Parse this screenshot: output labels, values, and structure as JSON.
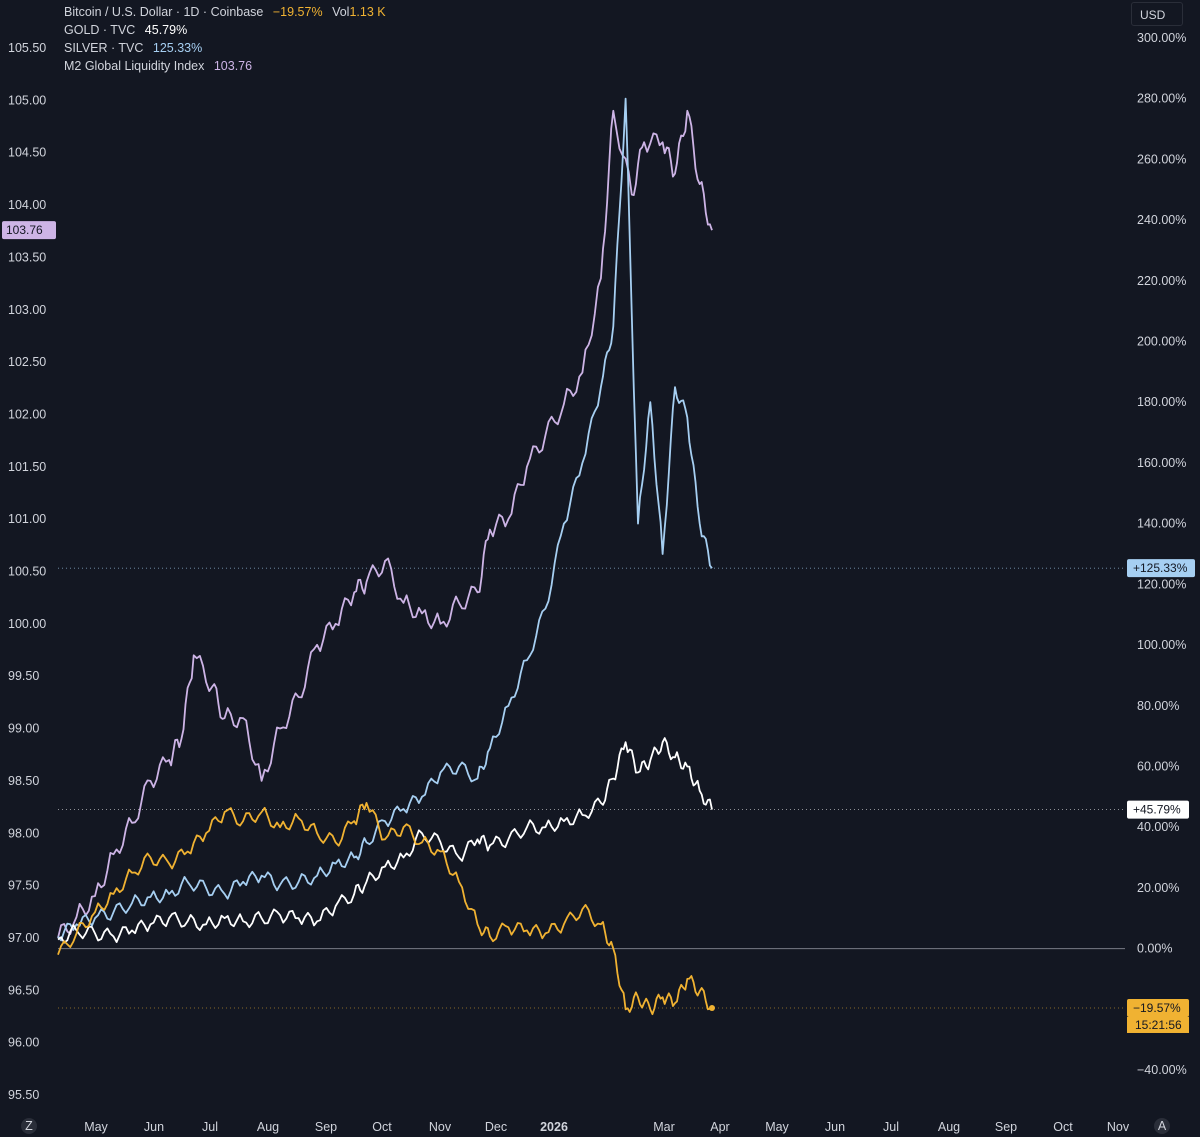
{
  "legend": [
    {
      "name": "Bitcoin / U.S. Dollar · 1D · Coinbase",
      "value": "−19.57%",
      "extra_label": "Vol",
      "extra_value": "1.13 K",
      "color": "#f0b232"
    },
    {
      "name": "GOLD · TVC",
      "value": "45.79%",
      "color": "#ffffff"
    },
    {
      "name": "SILVER · TVC",
      "value": "125.33%",
      "color": "#a6cff2"
    },
    {
      "name": "M2 Global Liquidity Index",
      "value": "103.76",
      "color": "#cdb4e6"
    }
  ],
  "currency_button": "USD",
  "bottom_left_icon": "Z",
  "bottom_right_icon": "A",
  "chart_data": {
    "type": "line",
    "left_axis": {
      "ticks": [
        "95.50",
        "96.00",
        "96.50",
        "97.00",
        "97.50",
        "98.00",
        "98.50",
        "99.00",
        "99.50",
        "100.00",
        "100.50",
        "101.00",
        "101.50",
        "102.00",
        "102.50",
        "103.00",
        "103.50",
        "104.00",
        "104.50",
        "105.00",
        "105.50"
      ],
      "range": [
        95.5,
        105.5
      ]
    },
    "right_axis": {
      "ticks": [
        "−40.00%",
        "−20.00%",
        "0.00%",
        "20.00%",
        "40.00%",
        "60.00%",
        "80.00%",
        "100.00%",
        "120.00%",
        "140.00%",
        "160.00%",
        "180.00%",
        "200.00%",
        "220.00%",
        "240.00%",
        "260.00%",
        "280.00%",
        "300.00%"
      ],
      "range": [
        -40,
        300
      ],
      "unit": "%"
    },
    "x_axis": {
      "labels": [
        "May",
        "Jun",
        "Jul",
        "Aug",
        "Sep",
        "Oct",
        "Nov",
        "Dec",
        "2026",
        "Mar",
        "Apr",
        "May",
        "Jun",
        "Jul",
        "Aug",
        "Sep",
        "Oct",
        "Nov"
      ],
      "bold_label": "2026",
      "start_month_index": 0,
      "month_positions": [
        0,
        1,
        2,
        3,
        4,
        5,
        6,
        7,
        8,
        10,
        11,
        12,
        13,
        14,
        15,
        16,
        17,
        18
      ]
    },
    "tags": {
      "m2": {
        "text": "103.76",
        "value": 103.76,
        "axis": "left",
        "color": "#cdb4e6"
      },
      "silver": {
        "text": "+125.33%",
        "value": 125.33,
        "axis": "right",
        "color": "#a6cff2"
      },
      "gold": {
        "text": "+45.79%",
        "value": 45.79,
        "axis": "right",
        "color": "#ffffff"
      },
      "bitcoin": {
        "text": "−19.57%",
        "value": -19.57,
        "axis": "right",
        "color": "#f0b232",
        "countdown": "15:21:56"
      }
    },
    "series": [
      {
        "name": "M2 Global Liquidity Index",
        "axis": "left",
        "color": "#cdb4e6",
        "t": [
          0,
          0.3,
          0.6,
          0.9,
          1.2,
          1.5,
          1.8,
          2.0,
          2.2,
          2.5,
          2.7,
          3.0,
          3.3,
          3.6,
          3.9,
          4.2,
          4.5,
          4.8,
          5.0,
          5.3,
          5.6,
          5.9,
          6.2,
          6.5,
          6.8,
          7.0,
          7.3,
          7.6,
          7.9,
          8.2,
          8.5,
          8.8,
          9.0,
          9.3,
          9.5,
          9.8,
          10.0,
          10.2,
          10.4,
          10.6
        ],
        "values": [
          97.0,
          97.2,
          97.4,
          97.8,
          98.1,
          98.5,
          98.7,
          98.9,
          99.7,
          99.4,
          99.1,
          99.1,
          98.5,
          99.0,
          99.3,
          99.8,
          100.0,
          100.3,
          100.4,
          100.6,
          100.2,
          100.1,
          100.0,
          100.2,
          100.3,
          100.9,
          101.0,
          101.5,
          101.8,
          102.1,
          102.4,
          103.3,
          104.9,
          104.1,
          104.6,
          104.6,
          104.3,
          104.9,
          104.2,
          103.76
        ]
      },
      {
        "name": "SILVER · TVC",
        "axis": "right",
        "color": "#a6cff2",
        "t": [
          0,
          0.3,
          0.6,
          0.9,
          1.2,
          1.5,
          1.8,
          2.1,
          2.4,
          2.7,
          3.0,
          3.3,
          3.6,
          3.9,
          4.2,
          4.5,
          4.8,
          5.0,
          5.3,
          5.6,
          5.9,
          6.2,
          6.5,
          6.8,
          7.0,
          7.3,
          7.6,
          7.9,
          8.2,
          8.5,
          8.8,
          9.0,
          9.2,
          9.4,
          9.6,
          9.8,
          10.0,
          10.2,
          10.4,
          10.6
        ],
        "values": [
          4,
          8,
          10,
          12,
          15,
          17,
          18,
          22,
          20,
          18,
          22,
          24,
          21,
          22,
          24,
          28,
          30,
          35,
          42,
          46,
          50,
          58,
          60,
          56,
          66,
          80,
          95,
          112,
          140,
          160,
          185,
          205,
          280,
          140,
          180,
          130,
          185,
          175,
          140,
          125.33
        ]
      },
      {
        "name": "GOLD · TVC",
        "axis": "right",
        "color": "#ffffff",
        "t": [
          0,
          0.3,
          0.6,
          0.9,
          1.2,
          1.5,
          1.8,
          2.1,
          2.4,
          2.7,
          3.0,
          3.3,
          3.6,
          3.9,
          4.2,
          4.5,
          4.8,
          5.0,
          5.3,
          5.6,
          5.9,
          6.2,
          6.5,
          6.8,
          7.0,
          7.3,
          7.6,
          7.9,
          8.2,
          8.5,
          8.8,
          9.0,
          9.2,
          9.4,
          9.6,
          9.8,
          10.0,
          10.2,
          10.4,
          10.6
        ],
        "values": [
          3,
          6,
          5,
          4,
          6,
          8,
          10,
          9,
          8,
          10,
          9,
          10,
          11,
          10,
          9,
          14,
          18,
          22,
          27,
          30,
          38,
          35,
          30,
          36,
          34,
          36,
          40,
          40,
          42,
          44,
          48,
          56,
          68,
          58,
          62,
          68,
          63,
          60,
          52,
          45.79
        ]
      },
      {
        "name": "Bitcoin / U.S. Dollar",
        "axis": "right",
        "color": "#f0b232",
        "t": [
          0,
          0.3,
          0.6,
          0.9,
          1.2,
          1.5,
          1.8,
          2.1,
          2.4,
          2.7,
          3.0,
          3.3,
          3.6,
          3.9,
          4.2,
          4.5,
          4.8,
          5.0,
          5.3,
          5.6,
          5.9,
          6.2,
          6.5,
          6.8,
          7.0,
          7.3,
          7.6,
          7.9,
          8.2,
          8.5,
          8.8,
          9.0,
          9.2,
          9.4,
          9.6,
          9.8,
          10.0,
          10.2,
          10.4,
          10.6
        ],
        "values": [
          -2,
          5,
          12,
          18,
          25,
          30,
          28,
          32,
          38,
          45,
          42,
          45,
          40,
          43,
          38,
          35,
          42,
          48,
          36,
          40,
          35,
          32,
          22,
          8,
          4,
          7,
          6,
          5,
          8,
          13,
          8,
          0,
          -20,
          -16,
          -20,
          -16,
          -18,
          -10,
          -14,
          -19.57
        ]
      }
    ]
  }
}
